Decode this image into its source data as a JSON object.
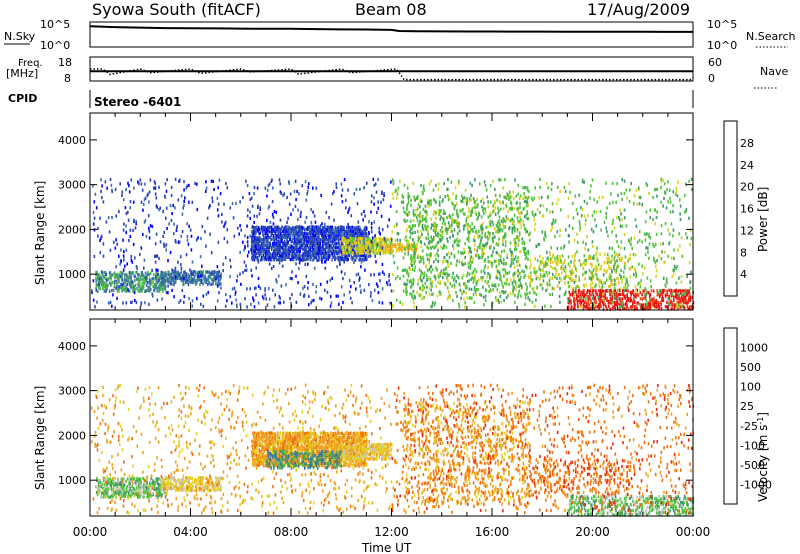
{
  "header": {
    "station": "Syowa South (fitACF)",
    "beam": "Beam 08",
    "date": "17/Aug/2009"
  },
  "chart_data": [
    {
      "type": "line",
      "panel": "noise",
      "left_label": "N.Sky",
      "right_label": "N.Search",
      "left_ticks": [
        "10^5",
        "10^0"
      ],
      "right_ticks": [
        "10^5",
        "10^0"
      ],
      "yscale": "log",
      "ylim": [
        1,
        100000
      ],
      "series": [
        {
          "name": "N.Sky",
          "style": "solid",
          "x": [
            0,
            1,
            2,
            3,
            4,
            5,
            6,
            7,
            8,
            9,
            10,
            11,
            12,
            12.3,
            13,
            14,
            15,
            16,
            17,
            18,
            19,
            20,
            21,
            22,
            23,
            24
          ],
          "values": [
            30000,
            20000,
            15000,
            12000,
            11000,
            10000,
            9000,
            8000,
            8000,
            7000,
            6000,
            5500,
            4500,
            2500,
            2200,
            2100,
            2000,
            2000,
            1900,
            1900,
            1800,
            1800,
            1700,
            1700,
            1600,
            1600
          ]
        }
      ]
    },
    {
      "type": "line",
      "panel": "frequency",
      "left_label_lines": [
        "Freq.",
        "[MHz]"
      ],
      "right_label": "Nave",
      "left_ticks": [
        18,
        8
      ],
      "right_ticks": [
        60,
        0
      ],
      "ylim_left": [
        8,
        18
      ],
      "ylim_right": [
        0,
        60
      ],
      "series": [
        {
          "name": "Freq.",
          "style": "solid",
          "x": [
            0,
            24
          ],
          "values": [
            12.0,
            12.0
          ]
        },
        {
          "name": "Nave",
          "style": "dotted",
          "x": [
            0,
            0.5,
            0.8,
            2,
            2.4,
            4,
            4.4,
            6,
            6.4,
            8,
            8.3,
            10,
            10.4,
            12.2,
            12.5,
            24
          ],
          "values": [
            30,
            30,
            15,
            30,
            20,
            30,
            18,
            30,
            22,
            30,
            16,
            30,
            20,
            30,
            1,
            1
          ]
        }
      ]
    },
    {
      "type": "table",
      "panel": "cpid",
      "label": "CPID",
      "value": "Stereo -6401"
    },
    {
      "type": "heatmap",
      "panel": "power",
      "ylabel": "Slant Range [km]",
      "yticks": [
        1000,
        2000,
        3000,
        4000
      ],
      "ylim": [
        200,
        4600
      ],
      "xlim": [
        0,
        24
      ],
      "colorbar_label": "Power [dB]",
      "colorbar_ticks": [
        4,
        8,
        12,
        16,
        20,
        24,
        28
      ],
      "colorbar_colors": [
        "#0000ff",
        "#2a46b4",
        "#3c6fae",
        "#3f9a6c",
        "#4fc43a",
        "#d7d21d",
        "#f2b21f",
        "#f48a1f",
        "#f0501c",
        "#e81010"
      ],
      "regions": [
        {
          "t": [
            0.2,
            3.0
          ],
          "r": [
            650,
            1100
          ],
          "level": 3,
          "density": 0.35
        },
        {
          "t": [
            2.8,
            5.2
          ],
          "r": [
            800,
            1100
          ],
          "level": 2,
          "density": 0.45
        },
        {
          "t": [
            6.4,
            11.0
          ],
          "r": [
            1350,
            2100
          ],
          "level": 1,
          "density": 0.55
        },
        {
          "t": [
            10.0,
            12.0
          ],
          "r": [
            1500,
            1850
          ],
          "level": 5,
          "density": 0.5
        },
        {
          "t": [
            11.5,
            13.0
          ],
          "r": [
            1550,
            1750
          ],
          "level": 6,
          "density": 0.35
        },
        {
          "t": [
            12.5,
            17.5
          ],
          "r": [
            500,
            2800
          ],
          "level": 4,
          "density": 0.1
        },
        {
          "t": [
            17.5,
            21.5
          ],
          "r": [
            700,
            1500
          ],
          "level": 5,
          "density": 0.1
        },
        {
          "t": [
            19.0,
            24.0
          ],
          "r": [
            250,
            700
          ],
          "level": 9,
          "density": 0.3
        },
        {
          "t": [
            0.0,
            12.0
          ],
          "r": [
            300,
            3200
          ],
          "level": 1,
          "density": 0.03
        },
        {
          "t": [
            12.0,
            24.0
          ],
          "r": [
            300,
            3200
          ],
          "level": 4,
          "density": 0.04
        }
      ]
    },
    {
      "type": "heatmap",
      "panel": "velocity",
      "ylabel": "Slant Range [km]",
      "yticks": [
        1000,
        2000,
        3000,
        4000
      ],
      "ylim": [
        200,
        4600
      ],
      "xlim": [
        0,
        24
      ],
      "xticks": [
        "00:00",
        "04:00",
        "08:00",
        "12:00",
        "16:00",
        "20:00",
        "00:00"
      ],
      "xlabel": "Time UT",
      "colorbar_label": "Velocity [m s-1]",
      "colorbar_ticks": [
        "1000",
        "500",
        "100",
        "25",
        "-25",
        "-100",
        "-500",
        "-1000"
      ],
      "colorbar_colors": [
        "#2844c0",
        "#3a6ea8",
        "#3d9070",
        "#52c43a",
        "#c8c8c8",
        "#e6d21c",
        "#f0a020",
        "#f07010",
        "#e82a10"
      ],
      "regions": [
        {
          "t": [
            0.2,
            3.0
          ],
          "r": [
            650,
            1100
          ],
          "level": 3,
          "density": 0.35
        },
        {
          "t": [
            2.8,
            5.2
          ],
          "r": [
            800,
            1100
          ],
          "level": 5,
          "density": 0.4
        },
        {
          "t": [
            6.4,
            11.0
          ],
          "r": [
            1350,
            2100
          ],
          "level": 6,
          "density": 0.55
        },
        {
          "t": [
            7.0,
            10.0
          ],
          "r": [
            1300,
            1700
          ],
          "level": 2,
          "density": 0.3
        },
        {
          "t": [
            10.0,
            12.0
          ],
          "r": [
            1500,
            1850
          ],
          "level": 5,
          "density": 0.45
        },
        {
          "t": [
            12.5,
            17.5
          ],
          "r": [
            500,
            2800
          ],
          "level": 6,
          "density": 0.1
        },
        {
          "t": [
            17.5,
            21.5
          ],
          "r": [
            700,
            1500
          ],
          "level": 7,
          "density": 0.1
        },
        {
          "t": [
            19.0,
            24.0
          ],
          "r": [
            250,
            700
          ],
          "level": 3,
          "density": 0.25
        },
        {
          "t": [
            0.0,
            12.0
          ],
          "r": [
            300,
            3200
          ],
          "level": 6,
          "density": 0.03
        },
        {
          "t": [
            12.0,
            24.0
          ],
          "r": [
            300,
            3200
          ],
          "level": 7,
          "density": 0.04
        }
      ]
    }
  ]
}
